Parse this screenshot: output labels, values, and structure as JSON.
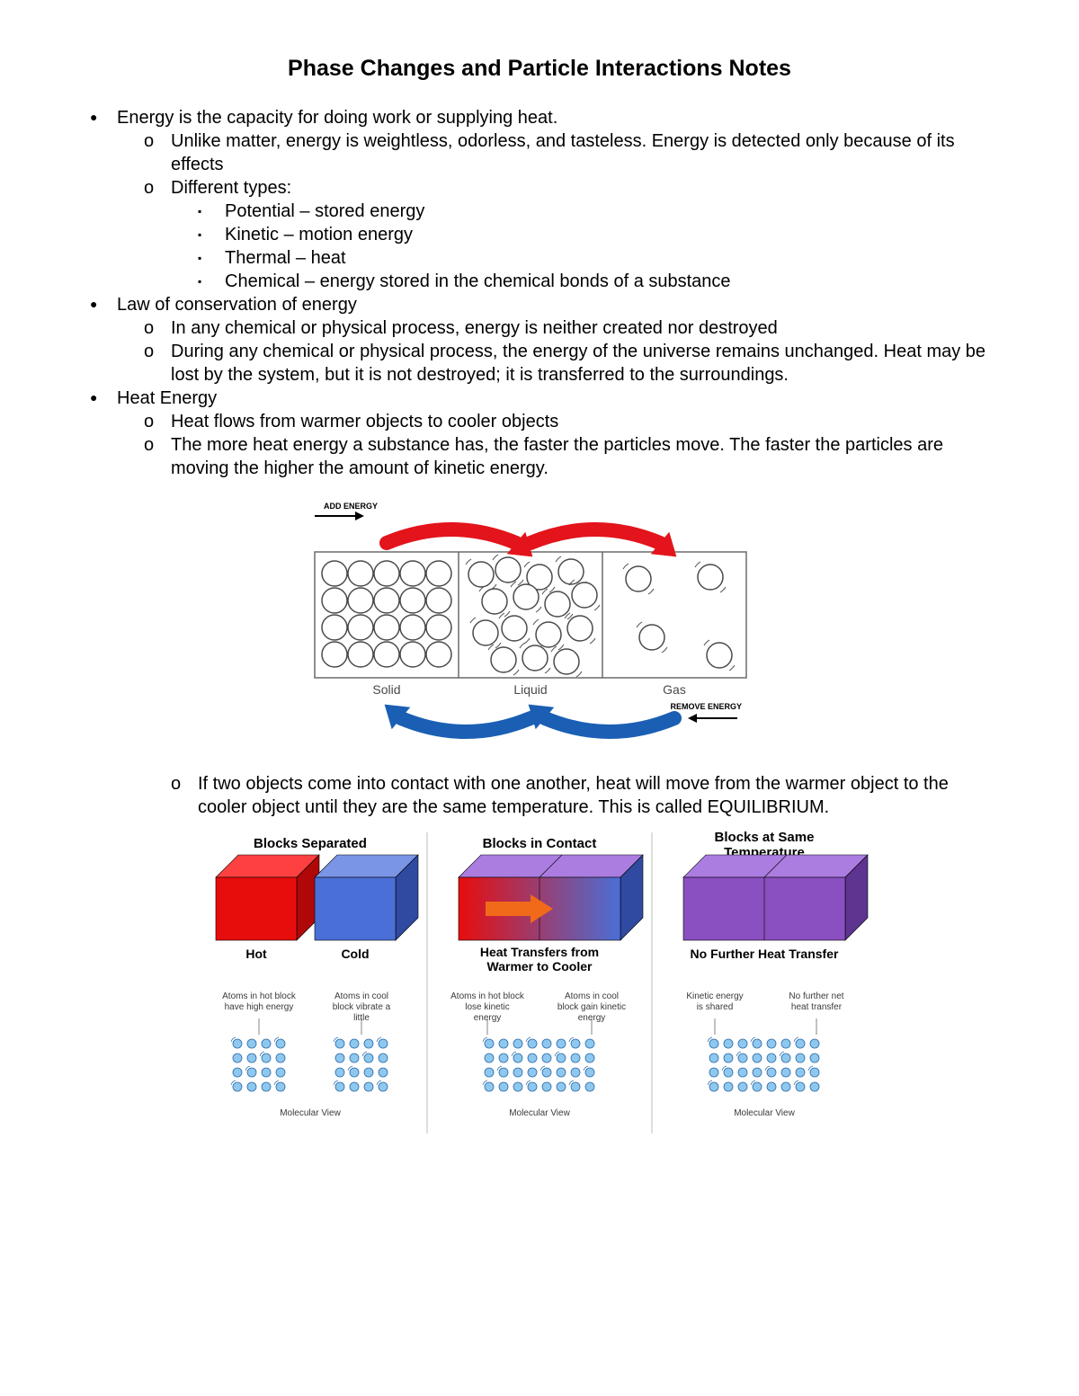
{
  "title": "Phase Changes and Particle Interactions Notes",
  "bullets": {
    "b1": "Energy is the capacity for doing work or supplying heat.",
    "b1a": "Unlike matter, energy is weightless, odorless, and tasteless. Energy is detected only because of its effects",
    "b1b": "Different types:",
    "b1b1": "Potential – stored energy",
    "b1b2": "Kinetic – motion energy",
    "b1b3": "Thermal – heat",
    "b1b4": "Chemical – energy stored in the chemical bonds of a substance",
    "b2": "Law of conservation of energy",
    "b2a": "In any chemical or physical process, energy is neither created nor destroyed",
    "b2b": "During any chemical or physical process, the energy of the universe remains unchanged. Heat may be lost by the system, but it is not destroyed; it is transferred to the surroundings.",
    "b3": "Heat Energy",
    "b3a": "Heat flows from warmer objects to cooler objects",
    "b3b": "The more heat energy a substance has, the faster the particles move. The faster the particles are moving the higher the amount of kinetic energy.",
    "b3c": "If two objects come into contact with one another, heat will move from the warmer object to the cooler object until they are the same temperature. This is called EQUILIBRIUM."
  },
  "phase_diagram": {
    "type": "infographic",
    "labels": {
      "solid": "Solid",
      "liquid": "Liquid",
      "gas": "Gas",
      "add": "ADD ENERGY",
      "remove": "REMOVE ENERGY"
    },
    "colors": {
      "border": "#6b6b6b",
      "fill": "#ffffff",
      "particle_stroke": "#4a4a4a",
      "red_arrow": "#e3141b",
      "blue_arrow": "#1a5fb4",
      "black_arrow": "#000000",
      "label_text": "#4a4a4a"
    },
    "box_size": [
      160,
      140
    ],
    "particle_radius": 14
  },
  "blocks_diagram": {
    "type": "infographic",
    "headings": {
      "sep": "Blocks Separated",
      "con": "Blocks in Contact",
      "same": "Blocks at Same Temperature"
    },
    "sublabels": {
      "hot": "Hot",
      "cold": "Cold",
      "transfer": "Heat Transfers from Warmer to Cooler",
      "nofurther": "No Further Heat Transfer"
    },
    "captions": {
      "c1a": "Atoms in hot block have high energy",
      "c1b": "Atoms in cool block vibrate a little",
      "c2a": "Atoms in hot block lose kinetic energy",
      "c2b": "Atoms in cool block gain kinetic energy",
      "c3a": "Kinetic energy is shared",
      "c3b": "No further net heat transfer"
    },
    "mv": "Molecular View",
    "colors": {
      "hot_face": "#e80d0d",
      "hot_side": "#b00808",
      "hot_top": "#ff4040",
      "cold_face": "#4a6fd6",
      "cold_side": "#2f4aa0",
      "cold_top": "#7a95e6",
      "mix_face": "#8a4fc0",
      "mix_side": "#5d3490",
      "mix_top": "#ab7de0",
      "arrow": "#f06a1a",
      "atom_fill": "#8fc8ef",
      "atom_stroke": "#2a6aa8",
      "divider": "#bdbdbd",
      "text": "#3a3a3a",
      "heading_text": "#000000"
    },
    "block_size": [
      90,
      70,
      25
    ],
    "atom_grid": [
      4,
      4
    ],
    "atom_grid_wide": [
      8,
      4
    ],
    "atom_radius": 5
  }
}
